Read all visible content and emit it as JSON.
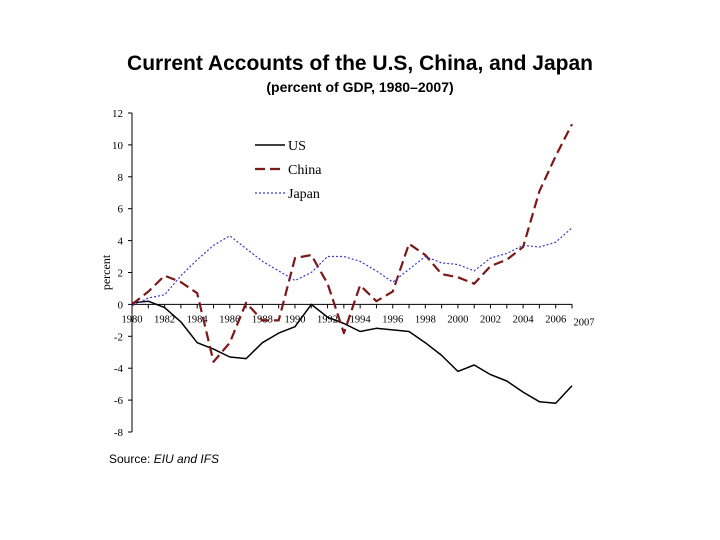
{
  "chart_data": {
    "type": "line",
    "title": "Current Accounts of the U.S, China, and Japan",
    "subtitle": "(percent of GDP, 1980–2007)",
    "xlabel": "",
    "ylabel": "percent",
    "ylim": [
      -8,
      12
    ],
    "yticks": [
      -8,
      -6,
      -4,
      -2,
      0,
      2,
      4,
      6,
      8,
      10,
      12
    ],
    "xlim": [
      1980,
      2007
    ],
    "xtick_labels": [
      {
        "x": 1980,
        "label": "1980"
      },
      {
        "x": 1982,
        "label": "1982"
      },
      {
        "x": 1984,
        "label": "1984"
      },
      {
        "x": 1986,
        "label": "1986"
      },
      {
        "x": 1988,
        "label": "1988"
      },
      {
        "x": 1990,
        "label": "1990"
      },
      {
        "x": 1992,
        "label": "1992"
      },
      {
        "x": 1994,
        "label": "1994"
      },
      {
        "x": 1996,
        "label": "1996"
      },
      {
        "x": 1998,
        "label": "1998"
      },
      {
        "x": 2000,
        "label": "2000"
      },
      {
        "x": 2002,
        "label": "2002"
      },
      {
        "x": 2004,
        "label": "2004"
      },
      {
        "x": 2006,
        "label": "2006"
      },
      {
        "x": 2007,
        "label": "2007"
      }
    ],
    "x": [
      1980,
      1981,
      1982,
      1983,
      1984,
      1985,
      1986,
      1987,
      1988,
      1989,
      1990,
      1991,
      1992,
      1993,
      1994,
      1995,
      1996,
      1997,
      1998,
      1999,
      2000,
      2001,
      2002,
      2003,
      2004,
      2005,
      2006,
      2007
    ],
    "series": [
      {
        "name": "US",
        "color": "#000000",
        "style": "solid",
        "values": [
          0.1,
          0.2,
          -0.2,
          -1.1,
          -2.4,
          -2.8,
          -3.3,
          -3.4,
          -2.4,
          -1.8,
          -1.4,
          0.0,
          -0.8,
          -1.2,
          -1.7,
          -1.5,
          -1.6,
          -1.7,
          -2.4,
          -3.2,
          -4.2,
          -3.8,
          -4.4,
          -4.8,
          -5.5,
          -6.1,
          -6.2,
          -5.1
        ]
      },
      {
        "name": "China",
        "color": "#7b1818",
        "style": "dashed",
        "values": [
          0.0,
          0.8,
          1.8,
          1.4,
          0.7,
          -3.6,
          -2.4,
          0.1,
          -1.0,
          -1.0,
          2.9,
          3.1,
          1.3,
          -1.8,
          1.2,
          0.2,
          0.8,
          3.8,
          3.1,
          1.9,
          1.7,
          1.3,
          2.4,
          2.8,
          3.6,
          7.1,
          9.3,
          11.3
        ]
      },
      {
        "name": "Japan",
        "color": "#3a3acc",
        "style": "dotted",
        "values": [
          -0.1,
          0.4,
          0.6,
          1.8,
          2.8,
          3.7,
          4.3,
          3.5,
          2.7,
          2.1,
          1.5,
          2.0,
          3.0,
          3.0,
          2.7,
          2.1,
          1.4,
          2.2,
          3.0,
          2.6,
          2.5,
          2.1,
          2.9,
          3.2,
          3.7,
          3.6,
          3.9,
          4.8
        ]
      }
    ],
    "legend_position": "top-center",
    "source_label": "Source:",
    "source_value": "EIU and IFS"
  }
}
